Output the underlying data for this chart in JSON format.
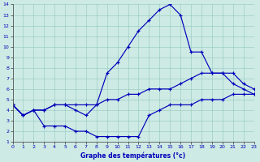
{
  "title": "Graphe des températures (°c)",
  "bg_color": "#ceeae4",
  "line_color": "#0000bb",
  "xlim": [
    0,
    23
  ],
  "ylim": [
    1,
    14
  ],
  "xticks": [
    0,
    1,
    2,
    3,
    4,
    5,
    6,
    7,
    8,
    9,
    10,
    11,
    12,
    13,
    14,
    15,
    16,
    17,
    18,
    19,
    20,
    21,
    22,
    23
  ],
  "yticks": [
    1,
    2,
    3,
    4,
    5,
    6,
    7,
    8,
    9,
    10,
    11,
    12,
    13,
    14
  ],
  "series": [
    {
      "x": [
        0,
        1,
        2,
        3,
        4,
        5,
        6,
        7,
        8,
        9,
        10,
        11,
        12,
        13,
        14,
        15,
        16,
        17,
        18,
        19,
        20,
        21,
        22,
        23
      ],
      "y": [
        4.5,
        3.5,
        4.0,
        4.0,
        4.5,
        4.5,
        4.0,
        3.5,
        4.5,
        7.5,
        8.5,
        10.0,
        11.5,
        12.5,
        13.5,
        14.0,
        13.0,
        9.5,
        9.5,
        7.5,
        7.5,
        6.5,
        6.0,
        5.5
      ]
    },
    {
      "x": [
        0,
        1,
        2,
        3,
        4,
        5,
        6,
        7,
        8,
        9,
        10,
        11,
        12,
        13,
        14,
        15,
        16,
        17,
        18,
        19,
        20,
        21,
        22,
        23
      ],
      "y": [
        4.5,
        3.5,
        4.0,
        4.0,
        4.5,
        4.5,
        4.5,
        4.5,
        4.5,
        5.0,
        5.0,
        5.5,
        5.5,
        6.0,
        6.0,
        6.0,
        6.5,
        7.0,
        7.5,
        7.5,
        7.5,
        7.5,
        6.5,
        6.0
      ]
    },
    {
      "x": [
        0,
        1,
        2,
        3,
        4,
        5,
        6,
        7,
        8,
        9,
        10,
        11,
        12,
        13,
        14,
        15,
        16,
        17,
        18,
        19,
        20,
        21,
        22,
        23
      ],
      "y": [
        4.5,
        3.5,
        4.0,
        2.5,
        2.5,
        2.5,
        2.0,
        2.0,
        1.5,
        1.5,
        1.5,
        1.5,
        1.5,
        3.5,
        4.0,
        4.5,
        4.5,
        4.5,
        5.0,
        5.0,
        5.0,
        5.5,
        5.5,
        5.5
      ]
    }
  ]
}
